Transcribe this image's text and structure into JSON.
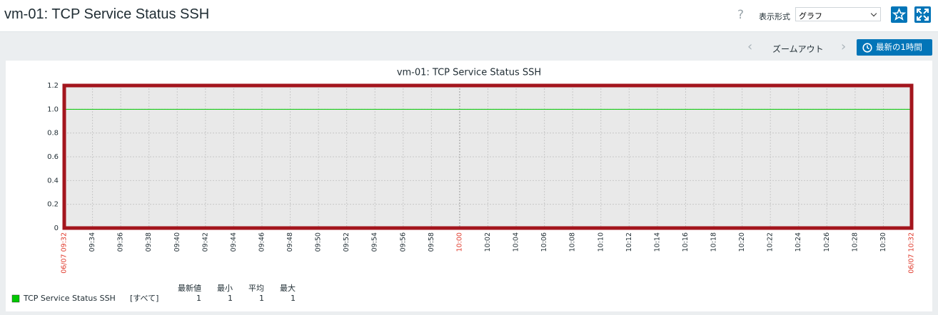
{
  "header": {
    "title": "vm-01: TCP Service Status SSH",
    "help": "?",
    "view_label": "表示形式",
    "view_value": "グラフ"
  },
  "toolbar": {
    "zoom_out": "ズームアウト",
    "last_hour": "最新の1時間"
  },
  "chart_data": {
    "type": "line",
    "title": "vm-01: TCP Service Status SSH",
    "categories": [
      "06/07 09:32",
      "09:34",
      "09:36",
      "09:38",
      "09:40",
      "09:42",
      "09:44",
      "09:46",
      "09:48",
      "09:50",
      "09:52",
      "09:54",
      "09:56",
      "09:58",
      "10:00",
      "10:02",
      "10:04",
      "10:06",
      "10:08",
      "10:10",
      "10:12",
      "10:14",
      "10:16",
      "10:18",
      "10:20",
      "10:22",
      "10:24",
      "10:26",
      "10:28",
      "10:30",
      "06/07 10:32"
    ],
    "highlighted_categories": [
      0,
      14,
      30
    ],
    "highlight_color": "#e0392b",
    "series": [
      {
        "name": "TCP Service Status SSH",
        "color": "#00c800",
        "values": [
          1,
          1,
          1,
          1,
          1,
          1,
          1,
          1,
          1,
          1,
          1,
          1,
          1,
          1,
          1,
          1,
          1,
          1,
          1,
          1,
          1,
          1,
          1,
          1,
          1,
          1,
          1,
          1,
          1,
          1,
          1
        ]
      }
    ],
    "ylim": [
      0,
      1.2
    ],
    "yticks": [
      0,
      0.2,
      0.4,
      0.6,
      0.8,
      {
        "value": 1,
        "label": "1.0"
      },
      1.2
    ],
    "grid": true,
    "legend": {
      "function": "[すべて]",
      "columns": [
        "最新値",
        "最小",
        "平均",
        "最大"
      ],
      "values": [
        1,
        1,
        1,
        1
      ]
    }
  }
}
